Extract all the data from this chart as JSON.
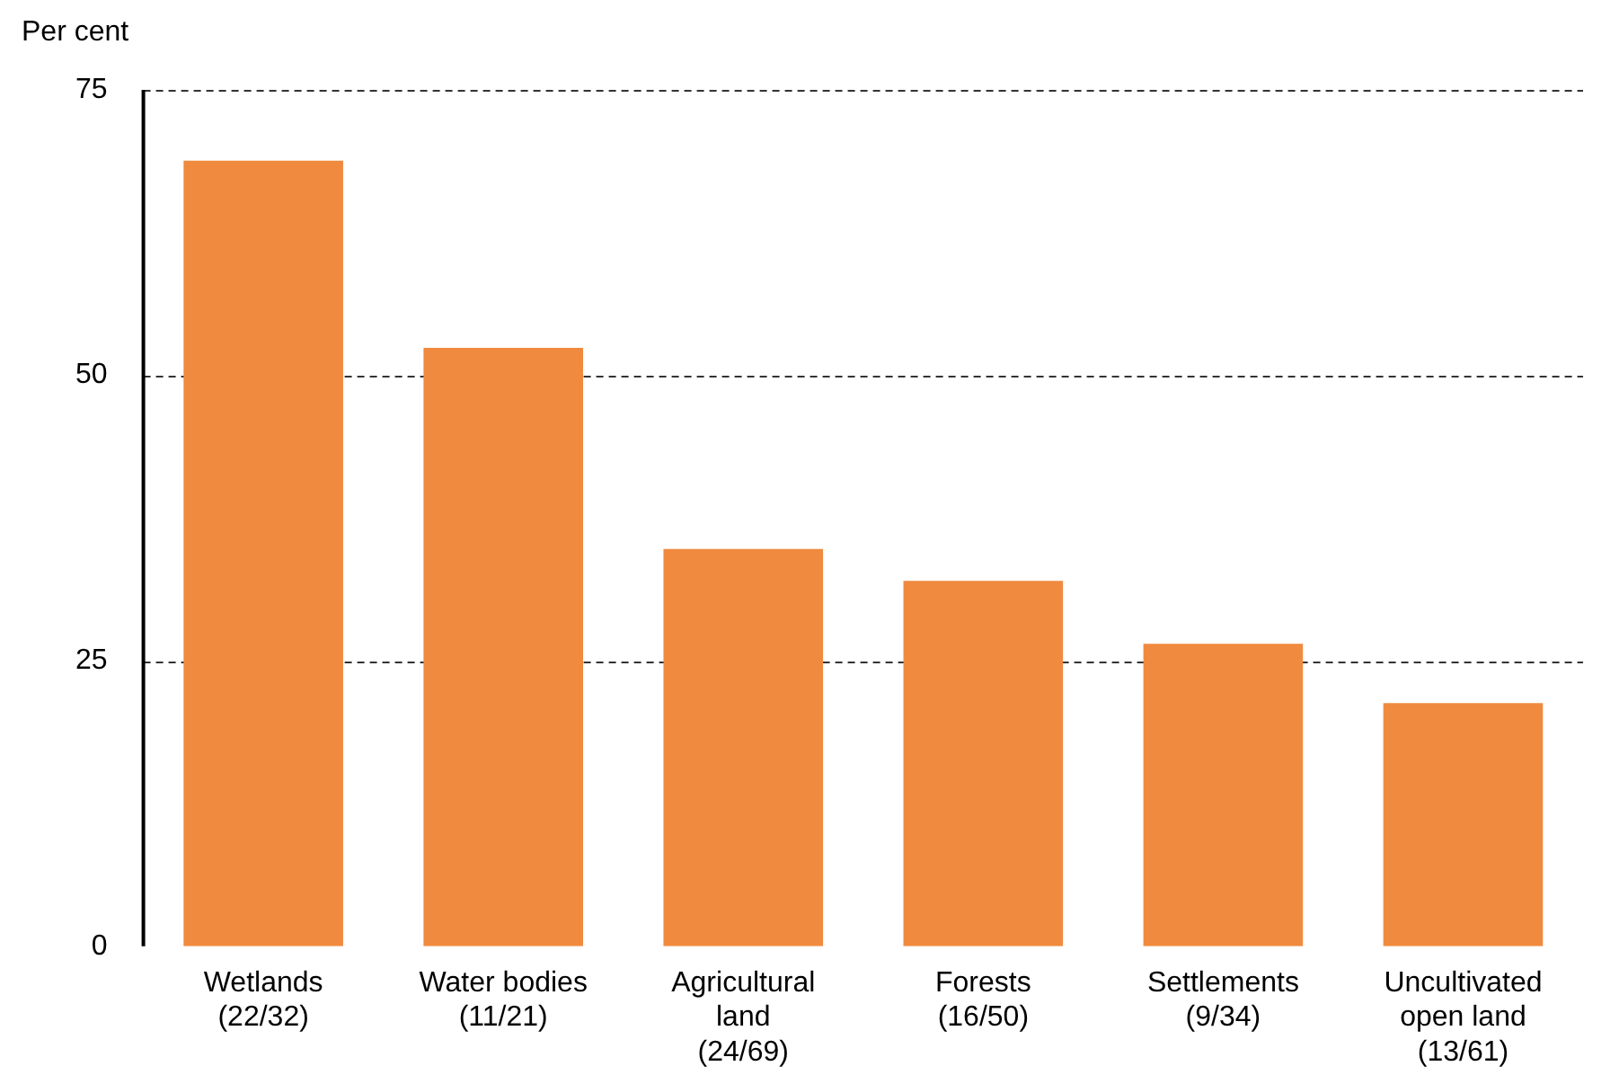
{
  "chart_data": {
    "type": "bar",
    "ylabel": "Per cent",
    "categories": [
      "Wetlands\n(22/32)",
      "Water bodies\n(11/21)",
      "Agricultural\nland\n(24/69)",
      "Forests\n(16/50)",
      "Settlements\n(9/34)",
      "Uncultivated\nopen land\n(13/61)"
    ],
    "values": [
      68.8,
      52.4,
      34.8,
      32,
      26.5,
      21.3
    ],
    "color": "#f08a3e",
    "ylim": [
      0,
      75
    ],
    "yticks": [
      0,
      25,
      50,
      75
    ],
    "grid": "y",
    "legend": false
  }
}
